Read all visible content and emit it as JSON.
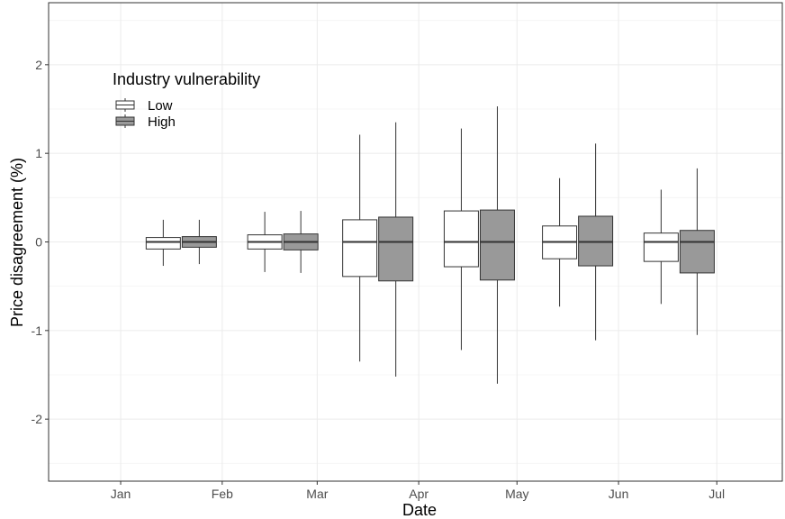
{
  "chart_data": {
    "type": "box",
    "xlabel": "Date",
    "ylabel": "Price disagreement (%)",
    "ylim": [
      -2.7,
      2.7
    ],
    "y_ticks": [
      -2,
      -1,
      0,
      1,
      2
    ],
    "y_tick_labels": [
      "-2",
      "-1",
      "0",
      "1",
      "2"
    ],
    "x_ticks": [
      "2020-01-01",
      "2020-02-01",
      "2020-03-01",
      "2020-04-01",
      "2020-05-01",
      "2020-06-01",
      "2020-07-01"
    ],
    "x_tick_labels": [
      "Jan",
      "Feb",
      "Mar",
      "Apr",
      "May",
      "Jun",
      "Jul"
    ],
    "xlim": [
      "2019-12-10",
      "2020-07-21"
    ],
    "grid": true,
    "legend": {
      "title": "Industry vulnerability",
      "position": "top-left",
      "entries": [
        "Low",
        "High"
      ]
    },
    "series": [
      {
        "name": "Low",
        "color": "#ffffff",
        "boxes": [
          {
            "x": "2020-01-14",
            "min": -0.27,
            "q1": -0.08,
            "median": 0.0,
            "q3": 0.05,
            "max": 0.25
          },
          {
            "x": "2020-02-14",
            "min": -0.34,
            "q1": -0.08,
            "median": 0.0,
            "q3": 0.08,
            "max": 0.34
          },
          {
            "x": "2020-03-14",
            "min": -1.35,
            "q1": -0.39,
            "median": 0.0,
            "q3": 0.25,
            "max": 1.21
          },
          {
            "x": "2020-04-14",
            "min": -1.22,
            "q1": -0.28,
            "median": 0.0,
            "q3": 0.35,
            "max": 1.28
          },
          {
            "x": "2020-05-14",
            "min": -0.73,
            "q1": -0.19,
            "median": 0.0,
            "q3": 0.18,
            "max": 0.72
          },
          {
            "x": "2020-06-14",
            "min": -0.7,
            "q1": -0.22,
            "median": 0.0,
            "q3": 0.1,
            "max": 0.59
          }
        ]
      },
      {
        "name": "High",
        "color": "#999999",
        "boxes": [
          {
            "x": "2020-01-25",
            "min": -0.25,
            "q1": -0.06,
            "median": 0.0,
            "q3": 0.06,
            "max": 0.25
          },
          {
            "x": "2020-02-25",
            "min": -0.35,
            "q1": -0.09,
            "median": 0.0,
            "q3": 0.09,
            "max": 0.35
          },
          {
            "x": "2020-03-25",
            "min": -1.52,
            "q1": -0.44,
            "median": 0.0,
            "q3": 0.28,
            "max": 1.35
          },
          {
            "x": "2020-04-25",
            "min": -1.6,
            "q1": -0.43,
            "median": 0.0,
            "q3": 0.36,
            "max": 1.53
          },
          {
            "x": "2020-05-25",
            "min": -1.11,
            "q1": -0.27,
            "median": 0.0,
            "q3": 0.29,
            "max": 1.11
          },
          {
            "x": "2020-06-25",
            "min": -1.05,
            "q1": -0.35,
            "median": 0.0,
            "q3": 0.13,
            "max": 0.83
          }
        ]
      }
    ]
  }
}
